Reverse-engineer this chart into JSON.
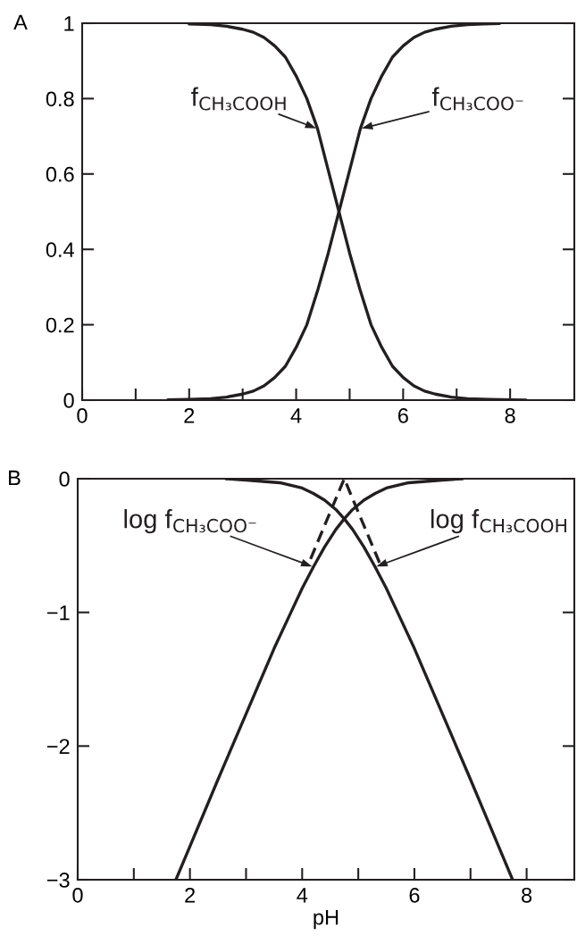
{
  "chart_data": [
    {
      "type": "line",
      "title": "A",
      "line_style": "solid",
      "xlim": [
        0,
        9.2
      ],
      "ylim": [
        0,
        1
      ],
      "xticks": [
        0,
        {
          "value": 1,
          "label": null
        },
        2,
        {
          "value": 3,
          "label": null
        },
        4,
        {
          "value": 5,
          "label": null
        },
        6,
        {
          "value": 7,
          "label": null
        },
        8
      ],
      "yticks": [
        0,
        0.2,
        0.4,
        0.6,
        0.8,
        1
      ],
      "series": [
        {
          "color": "#231f20",
          "x": [
            2.0,
            2.4,
            2.7,
            3.0,
            3.2,
            3.4,
            3.6,
            3.8,
            4.0,
            4.2,
            4.4,
            4.6,
            4.8,
            5.0,
            5.2,
            5.4,
            5.6,
            5.8,
            6.0,
            6.2,
            6.4,
            6.6,
            6.9,
            7.2,
            7.6,
            8.0,
            8.3
          ],
          "values": [
            0.998,
            0.996,
            0.992,
            0.984,
            0.976,
            0.962,
            0.94,
            0.91,
            0.86,
            0.8,
            0.72,
            0.61,
            0.5,
            0.39,
            0.29,
            0.2,
            0.14,
            0.09,
            0.06,
            0.038,
            0.024,
            0.016,
            0.008,
            0.004,
            0.002,
            0.001,
            0
          ]
        },
        {
          "color": "#231f20",
          "x": [
            1.6,
            2.0,
            2.4,
            2.7,
            3.0,
            3.2,
            3.4,
            3.6,
            3.8,
            4.0,
            4.2,
            4.4,
            4.6,
            4.8,
            5.0,
            5.2,
            5.4,
            5.6,
            5.8,
            6.0,
            6.2,
            6.4,
            6.6,
            6.9,
            7.2,
            7.5,
            7.8
          ],
          "values": [
            0.001,
            0.002,
            0.004,
            0.008,
            0.016,
            0.024,
            0.038,
            0.06,
            0.09,
            0.14,
            0.2,
            0.29,
            0.39,
            0.5,
            0.61,
            0.72,
            0.8,
            0.86,
            0.91,
            0.94,
            0.962,
            0.976,
            0.984,
            0.992,
            0.996,
            0.998,
            0.999
          ]
        }
      ],
      "annotations": [
        {
          "text": "f$_{CH₃COOH}$",
          "x": 4.4,
          "y": 0.72
        },
        {
          "text": "f$_{CH₃COO⁻}$",
          "x": 5.2,
          "y": 0.72
        }
      ]
    },
    {
      "type": "line",
      "title": "B",
      "xlabel": "pH",
      "line_style": "solid",
      "xlim": [
        0,
        8.85
      ],
      "ylim": [
        -3,
        0
      ],
      "xticks": [
        0,
        {
          "value": 1,
          "label": null
        },
        2,
        {
          "value": 3,
          "label": null
        },
        4,
        {
          "value": 5,
          "label": null
        },
        6,
        {
          "value": 7,
          "label": null
        },
        8
      ],
      "yticks": [
        {
          "value": -3,
          "label": "−3"
        },
        {
          "value": -2,
          "label": "−2"
        },
        {
          "value": -1,
          "label": "−1"
        },
        0
      ],
      "series": [
        {
          "color": "#231f20",
          "x": [
            1.75,
            2.0,
            2.5,
            3.0,
            3.5,
            3.8,
            4.0,
            4.2,
            4.4,
            4.6,
            4.75,
            4.9,
            5.1,
            5.3,
            5.5,
            5.7,
            5.9,
            6.2,
            6.5,
            6.86
          ],
          "values": [
            -3.0,
            -2.75,
            -2.25,
            -1.76,
            -1.27,
            -1.0,
            -0.82,
            -0.66,
            -0.51,
            -0.38,
            -0.3,
            -0.23,
            -0.16,
            -0.11,
            -0.07,
            -0.05,
            -0.03,
            -0.02,
            -0.01,
            0
          ]
        },
        {
          "color": "#231f20",
          "x": [
            2.64,
            3.0,
            3.3,
            3.6,
            3.8,
            4.0,
            4.2,
            4.4,
            4.6,
            4.75,
            4.9,
            5.1,
            5.3,
            5.5,
            5.7,
            6.0,
            6.5,
            7.0,
            7.25,
            7.75
          ],
          "values": [
            0,
            -0.01,
            -0.02,
            -0.03,
            -0.05,
            -0.07,
            -0.11,
            -0.16,
            -0.23,
            -0.3,
            -0.38,
            -0.51,
            -0.66,
            -0.82,
            -1.0,
            -1.27,
            -1.76,
            -2.25,
            -2.5,
            -3.0
          ]
        },
        {
          "color": "#231f20",
          "line_style": "dashed",
          "x": [
            4.15,
            4.75,
            5.4
          ],
          "values": [
            -0.6,
            0,
            -0.65
          ]
        }
      ],
      "annotations": [
        {
          "text": "log f$_{CH₃COO⁻}$",
          "x": 4.2,
          "y": -0.66
        },
        {
          "text": "log f$_{CH₃COOH}$",
          "x": 5.3,
          "y": -0.66
        }
      ]
    }
  ]
}
